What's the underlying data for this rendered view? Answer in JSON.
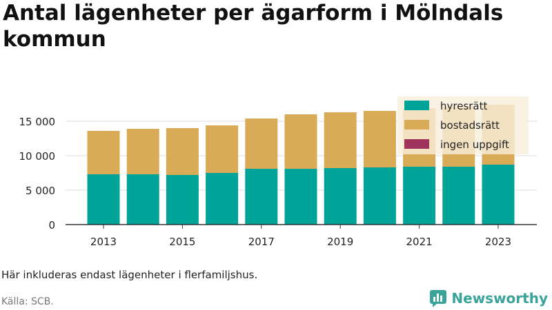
{
  "title": "Antal lägenheter per ägarform i Mölndals kommun",
  "note": "Här inkluderas endast lägenheter i flerfamiljshus.",
  "source": "Källa: SCB.",
  "brand": "Newsworthy",
  "colors": {
    "hyresratt": "#00a398",
    "bostadsratt": "#d9ab56",
    "ingen_uppgift": "#a0325e",
    "legend_bg": "#f8eedb",
    "brand": "#3aa39a"
  },
  "chart_data": {
    "type": "bar",
    "stacked": true,
    "categories": [
      "2013",
      "2014",
      "2015",
      "2016",
      "2017",
      "2018",
      "2019",
      "2020",
      "2021",
      "2022",
      "2023"
    ],
    "x_tick_labels": [
      "2013",
      "2015",
      "2017",
      "2019",
      "2021",
      "2023"
    ],
    "y_tick_labels": [
      "0",
      "5 000",
      "10 000",
      "15 000"
    ],
    "y_ticks": [
      0,
      5000,
      10000,
      15000
    ],
    "ylim": [
      0,
      18000
    ],
    "grid": true,
    "legend_position": "top-right",
    "series": [
      {
        "name": "hyresrätt",
        "color": "#00a398",
        "values": [
          7300,
          7300,
          7200,
          7500,
          8100,
          8100,
          8200,
          8300,
          8400,
          8400,
          8700
        ]
      },
      {
        "name": "bostadsrätt",
        "color": "#d9ab56",
        "values": [
          6300,
          6600,
          6800,
          6900,
          7300,
          7900,
          8100,
          8200,
          8500,
          8700,
          8700
        ]
      },
      {
        "name": "ingen uppgift",
        "color": "#a0325e",
        "values": [
          0,
          0,
          0,
          0,
          0,
          0,
          0,
          0,
          0,
          0,
          0
        ]
      }
    ]
  }
}
